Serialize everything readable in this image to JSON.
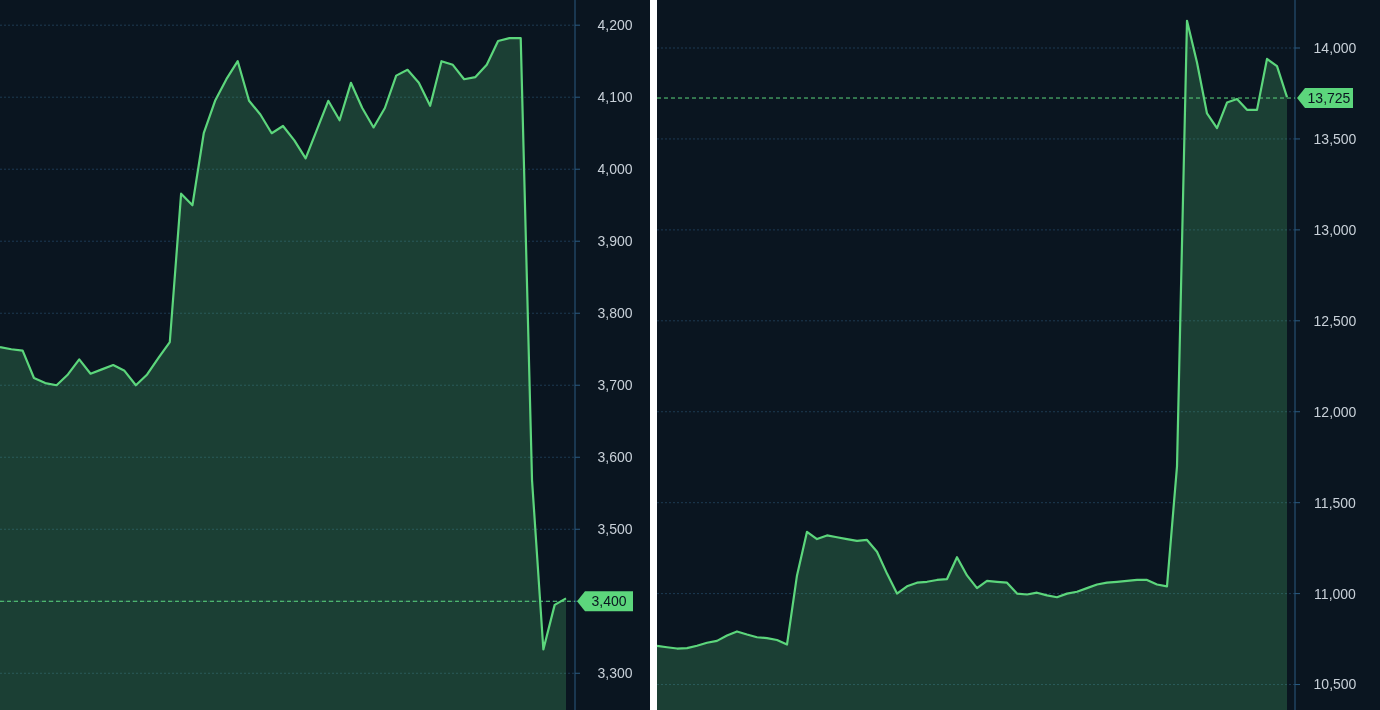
{
  "chart_data": [
    {
      "type": "area",
      "color": "#5cd67c",
      "grid": "y",
      "tick_labels": "y",
      "categories": [
        null,
        null,
        null,
        null,
        null,
        null,
        null,
        null,
        null,
        null,
        null,
        null,
        null,
        null,
        null,
        null,
        null,
        null,
        null,
        null,
        null,
        null,
        null,
        null,
        null,
        null,
        null,
        null,
        null,
        null,
        null,
        null,
        null,
        null,
        null,
        null,
        null,
        null,
        null,
        null,
        null,
        null,
        null,
        null,
        null,
        null,
        null,
        null,
        null,
        null,
        null
      ],
      "values": [
        3753,
        3750,
        3748,
        3710,
        3703,
        3700,
        3715,
        3736,
        3716,
        3722,
        3728,
        3720,
        3700,
        3715,
        3738,
        3760,
        3966,
        3950,
        4050,
        4095,
        4125,
        4150,
        4095,
        4076,
        4050,
        4060,
        4040,
        4015,
        4055,
        4095,
        4068,
        4120,
        4085,
        4058,
        4085,
        4130,
        4138,
        4120,
        4088,
        4150,
        4145,
        4125,
        4128,
        4145,
        4178,
        4182,
        4182,
        3568,
        3333,
        3395,
        3404
      ],
      "ylim": [
        3249,
        4235
      ],
      "yticks": [
        {
          "value": 3300,
          "label": "3,300"
        },
        {
          "value": 3400,
          "label": null
        },
        {
          "value": 3500,
          "label": "3,500"
        },
        {
          "value": 3600,
          "label": "3,600"
        },
        {
          "value": 3700,
          "label": "3,700"
        },
        {
          "value": 3800,
          "label": "3,800"
        },
        {
          "value": 3900,
          "label": "3,900"
        },
        {
          "value": 4000,
          "label": "4,000"
        },
        {
          "value": 4100,
          "label": "4,100"
        },
        {
          "value": 4200,
          "label": "4,200"
        }
      ],
      "ref_lines": [
        {
          "axis": "y",
          "value": 3400,
          "label": "3,400",
          "color": "#5cd67c",
          "line_style": "dashed"
        }
      ]
    },
    {
      "type": "area",
      "color": "#5cd67c",
      "grid": "y",
      "tick_labels": "y",
      "categories": [
        null,
        null,
        null,
        null,
        null,
        null,
        null,
        null,
        null,
        null,
        null,
        null,
        null,
        null,
        null,
        null,
        null,
        null,
        null,
        null,
        null,
        null,
        null,
        null,
        null,
        null,
        null,
        null,
        null,
        null,
        null,
        null,
        null,
        null,
        null,
        null,
        null,
        null,
        null,
        null,
        null,
        null,
        null,
        null,
        null,
        null,
        null,
        null,
        null,
        null,
        null,
        null,
        null,
        null,
        null,
        null,
        null,
        null,
        null,
        null,
        null,
        null,
        null,
        null
      ],
      "values": [
        10713,
        10705,
        10698,
        10700,
        10713,
        10730,
        10740,
        10770,
        10792,
        10775,
        10760,
        10755,
        10745,
        10720,
        11100,
        11340,
        11300,
        11320,
        11310,
        11300,
        11290,
        11295,
        11230,
        11110,
        11000,
        11040,
        11060,
        11065,
        11075,
        11080,
        11200,
        11100,
        11030,
        11070,
        11065,
        11060,
        11000,
        10995,
        11005,
        10990,
        10980,
        11000,
        11010,
        11030,
        11050,
        11060,
        11065,
        11070,
        11075,
        11075,
        11050,
        11040,
        11700,
        14150,
        13920,
        13640,
        13560,
        13700,
        13720,
        13660,
        13660,
        13940,
        13900,
        13730
      ],
      "ylim": [
        10360,
        14264
      ],
      "yticks": [
        {
          "value": 10500,
          "label": "10,500"
        },
        {
          "value": 11000,
          "label": "11,000"
        },
        {
          "value": 11500,
          "label": "11,500"
        },
        {
          "value": 12000,
          "label": "12,000"
        },
        {
          "value": 12500,
          "label": "12,500"
        },
        {
          "value": 13000,
          "label": "13,000"
        },
        {
          "value": 13500,
          "label": "13,500"
        },
        {
          "value": 14000,
          "label": "14,000"
        }
      ],
      "ref_lines": [
        {
          "axis": "y",
          "value": 13725,
          "label": "13,725",
          "color": "#5cd67c",
          "line_style": "dashed"
        }
      ]
    }
  ]
}
